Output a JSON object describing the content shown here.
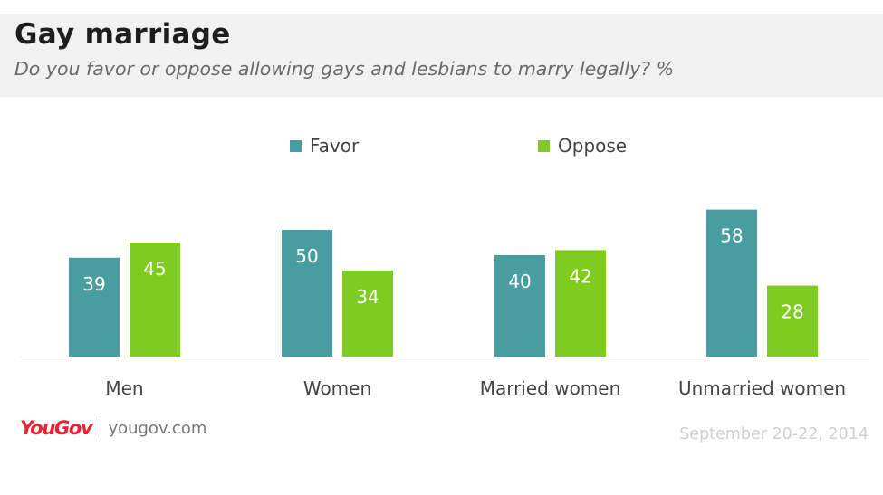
{
  "header": {
    "title": "Gay marriage",
    "subtitle": "Do you favor or oppose allowing gays and lesbians to marry legally? %"
  },
  "legend": [
    {
      "label": "Favor",
      "color": "#479d9f"
    },
    {
      "label": "Oppose",
      "color": "#7fcb20"
    }
  ],
  "footer": {
    "logo": "YouGov",
    "url": "yougov.com",
    "date": "September 20-22, 2014"
  },
  "chart_data": {
    "type": "bar",
    "categories": [
      "Men",
      "Women",
      "Married women",
      "Unmarried women"
    ],
    "series": [
      {
        "name": "Favor",
        "values": [
          39,
          50,
          40,
          58
        ],
        "color": "#479d9f"
      },
      {
        "name": "Oppose",
        "values": [
          45,
          34,
          42,
          28
        ],
        "color": "#7fcb20"
      }
    ],
    "data_labels": true,
    "grid": false,
    "legend_position": "top"
  }
}
